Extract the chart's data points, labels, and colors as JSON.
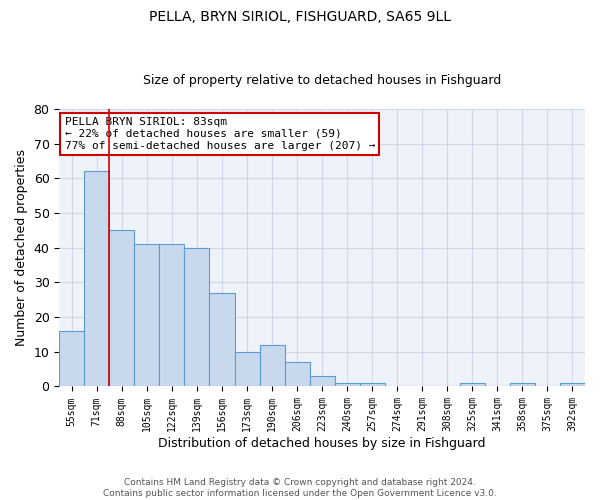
{
  "title1": "PELLA, BRYN SIRIOL, FISHGUARD, SA65 9LL",
  "title2": "Size of property relative to detached houses in Fishguard",
  "xlabel": "Distribution of detached houses by size in Fishguard",
  "ylabel": "Number of detached properties",
  "bar_labels": [
    "55sqm",
    "71sqm",
    "88sqm",
    "105sqm",
    "122sqm",
    "139sqm",
    "156sqm",
    "173sqm",
    "190sqm",
    "206sqm",
    "223sqm",
    "240sqm",
    "257sqm",
    "274sqm",
    "291sqm",
    "308sqm",
    "325sqm",
    "341sqm",
    "358sqm",
    "375sqm",
    "392sqm"
  ],
  "bar_values": [
    16,
    62,
    45,
    41,
    41,
    40,
    27,
    10,
    12,
    7,
    3,
    1,
    1,
    0,
    0,
    0,
    1,
    0,
    1,
    0,
    1
  ],
  "bar_color": "#c9d9ed",
  "bar_edge_color": "#5b9bd5",
  "grid_color": "#d0d8e8",
  "bg_color": "#eef2f9",
  "property_line_x": 1.5,
  "annotation_title": "PELLA BRYN SIRIOL: 83sqm",
  "annotation_line1": "← 22% of detached houses are smaller (59)",
  "annotation_line2": "77% of semi-detached houses are larger (207) →",
  "annotation_box_color": "#ffffff",
  "annotation_box_edge": "#cc0000",
  "footer1": "Contains HM Land Registry data © Crown copyright and database right 2024.",
  "footer2": "Contains public sector information licensed under the Open Government Licence v3.0.",
  "ylim": [
    0,
    80
  ],
  "yticks": [
    0,
    10,
    20,
    30,
    40,
    50,
    60,
    70,
    80
  ]
}
